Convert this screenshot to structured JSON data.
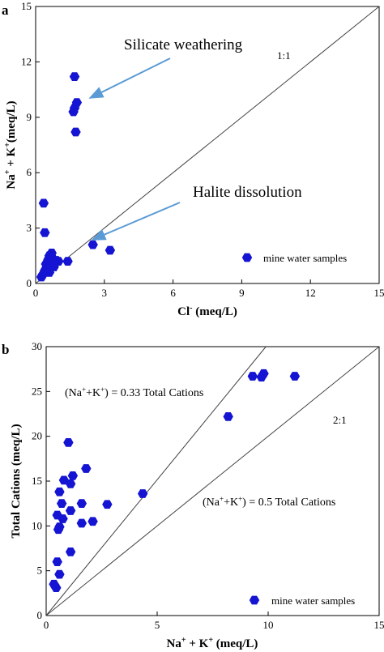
{
  "chart_data": [
    {
      "panel_label": "a",
      "type": "scatter",
      "xlabel_main": "Cl",
      "xlabel_sup": "-",
      "xlabel_unit": " (meq/L)",
      "ylabel_parts": [
        "Na",
        "+",
        " + K",
        "+",
        "(meq/L)"
      ],
      "xlim": [
        0,
        15
      ],
      "ylim": [
        0,
        15
      ],
      "xticks": [
        0,
        3,
        6,
        9,
        12,
        15
      ],
      "yticks": [
        0,
        3,
        6,
        9,
        12,
        15
      ],
      "grid": false,
      "legend": "bottom-right",
      "series": [
        {
          "name": "mine water samples",
          "color": "#1414d2",
          "marker": "hexagon",
          "points": [
            [
              1.7,
              11.2
            ],
            [
              1.8,
              9.8
            ],
            [
              1.7,
              9.5
            ],
            [
              1.65,
              9.3
            ],
            [
              1.75,
              8.2
            ],
            [
              0.35,
              4.35
            ],
            [
              0.4,
              2.75
            ],
            [
              2.5,
              2.1
            ],
            [
              3.25,
              1.8
            ],
            [
              0.7,
              1.65
            ],
            [
              0.6,
              1.5
            ],
            [
              0.55,
              1.3
            ],
            [
              0.75,
              1.35
            ],
            [
              0.9,
              1.25
            ],
            [
              1.0,
              1.2
            ],
            [
              1.4,
              1.2
            ],
            [
              0.45,
              1.05
            ],
            [
              0.6,
              1.0
            ],
            [
              0.8,
              0.9
            ],
            [
              0.5,
              0.8
            ],
            [
              0.4,
              0.7
            ],
            [
              0.6,
              0.6
            ],
            [
              0.3,
              0.45
            ],
            [
              0.25,
              0.35
            ]
          ]
        }
      ],
      "reference_lines": [
        {
          "label": "1:1",
          "slope": 1
        }
      ],
      "annotations": [
        {
          "text": "Silicate weathering",
          "arrow_to": [
            2.2,
            10.1
          ]
        },
        {
          "text": "Halite dissolution",
          "arrow_to": [
            2.2,
            2.1
          ]
        }
      ],
      "legend_label": "mine water samples"
    },
    {
      "panel_label": "b",
      "type": "scatter",
      "ylabel": "Total Cations (meq/L)",
      "xlabel_parts": [
        "Na",
        "+",
        " + K",
        "+",
        " (meq/L)"
      ],
      "xlim": [
        0,
        15
      ],
      "ylim": [
        0,
        30
      ],
      "xticks": [
        0,
        5,
        10,
        15
      ],
      "yticks": [
        0,
        5,
        10,
        15,
        20,
        25,
        30
      ],
      "grid": false,
      "legend": "bottom-right",
      "series": [
        {
          "name": "mine water samples",
          "color": "#1414d2",
          "marker": "hexagon",
          "points": [
            [
              9.3,
              26.7
            ],
            [
              9.7,
              26.6
            ],
            [
              9.8,
              27.0
            ],
            [
              11.2,
              26.7
            ],
            [
              8.2,
              22.2
            ],
            [
              4.35,
              13.6
            ],
            [
              1.0,
              19.3
            ],
            [
              1.8,
              16.4
            ],
            [
              1.2,
              15.6
            ],
            [
              0.8,
              15.1
            ],
            [
              1.1,
              14.7
            ],
            [
              0.6,
              13.8
            ],
            [
              0.7,
              12.5
            ],
            [
              1.6,
              12.5
            ],
            [
              2.75,
              12.4
            ],
            [
              1.1,
              11.7
            ],
            [
              0.5,
              11.2
            ],
            [
              0.75,
              10.8
            ],
            [
              2.1,
              10.5
            ],
            [
              1.6,
              10.3
            ],
            [
              0.6,
              9.9
            ],
            [
              0.55,
              9.6
            ],
            [
              1.1,
              7.1
            ],
            [
              0.5,
              6.0
            ],
            [
              0.6,
              4.6
            ],
            [
              0.35,
              3.5
            ],
            [
              0.45,
              3.1
            ]
          ]
        }
      ],
      "reference_lines": [
        {
          "label": "",
          "slope": 3.0303
        },
        {
          "label": "2:1",
          "slope": 2
        }
      ],
      "annotations": [
        {
          "parts": [
            "(Na",
            "+",
            "+K",
            "+",
            ") = 0.33 Total Cations"
          ]
        },
        {
          "parts": [
            "(Na",
            "+",
            "+K",
            "+",
            ") = 0.5 Total Cations"
          ]
        }
      ],
      "legend_label": "mine water samples"
    }
  ]
}
